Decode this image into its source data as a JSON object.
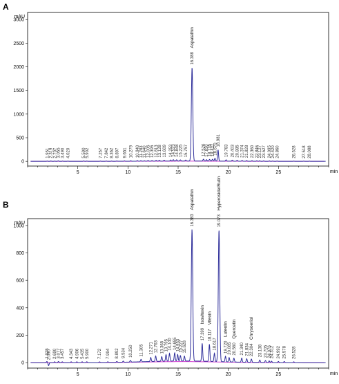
{
  "chart_data": [
    {
      "type": "line",
      "panel_label": "A",
      "ylabel": "mAU",
      "xlabel": "min",
      "xlim": [
        0,
        30
      ],
      "ylim": [
        -100,
        3150
      ],
      "x_ticks": [
        5,
        10,
        15,
        20,
        25
      ],
      "y_ticks": [
        0,
        500,
        1000,
        1500,
        2000,
        2500,
        3000
      ],
      "trace_color": "#2e2e9a",
      "baseline_color": "#d040d0",
      "peaks": [
        {
          "t": 1.951,
          "label": "1.951",
          "h": 6
        },
        {
          "t": 2.319,
          "label": "2.319",
          "h": 8
        },
        {
          "t": 2.707,
          "label": "2.707",
          "h": 6
        },
        {
          "t": 3.055,
          "label": "3.055",
          "h": 10
        },
        {
          "t": 3.49,
          "label": "3.490",
          "h": 6
        },
        {
          "t": 4.02,
          "label": "4.020",
          "h": 5
        },
        {
          "t": 5.59,
          "label": "5.590",
          "h": 8
        },
        {
          "t": 5.902,
          "label": "5.902",
          "h": 6
        },
        {
          "t": 7.257,
          "label": "7.257",
          "h": 5
        },
        {
          "t": 7.842,
          "label": "7.842",
          "h": 6
        },
        {
          "t": 8.362,
          "label": "8.362",
          "h": 5
        },
        {
          "t": 8.897,
          "label": "8.897",
          "h": 6
        },
        {
          "t": 9.651,
          "label": "9.651",
          "h": 8
        },
        {
          "t": 10.279,
          "label": "10.279",
          "h": 10
        },
        {
          "t": 10.94,
          "label": "10.940",
          "h": 12
        },
        {
          "t": 11.283,
          "label": "11.283",
          "h": 10
        },
        {
          "t": 11.64,
          "label": "11.640",
          "h": 8
        },
        {
          "t": 12.005,
          "label": "12.005",
          "h": 14
        },
        {
          "t": 12.395,
          "label": "12.395",
          "h": 12
        },
        {
          "t": 12.813,
          "label": "12.813",
          "h": 16
        },
        {
          "t": 13.128,
          "label": "13.128",
          "h": 18
        },
        {
          "t": 13.609,
          "label": "13.609",
          "h": 20
        },
        {
          "t": 14.253,
          "label": "14.253",
          "h": 24
        },
        {
          "t": 14.523,
          "label": "14.523",
          "h": 30
        },
        {
          "t": 14.848,
          "label": "14.848",
          "h": 28
        },
        {
          "t": 15.225,
          "label": "15.225",
          "h": 26
        },
        {
          "t": 15.757,
          "label": "15.757",
          "h": 22
        },
        {
          "t": 16.388,
          "label": "16.388",
          "h": 1980,
          "name": "Aspalathin"
        },
        {
          "t": 17.526,
          "label": "17.526",
          "h": 40
        },
        {
          "t": 17.83,
          "label": "17.830",
          "h": 30
        },
        {
          "t": 18.135,
          "label": "18.135",
          "h": 36
        },
        {
          "t": 18.427,
          "label": "18.427",
          "h": 40
        },
        {
          "t": 18.67,
          "label": "18.670",
          "h": 60
        },
        {
          "t": 18.981,
          "label": "18.981",
          "h": 240
        },
        {
          "t": 19.783,
          "label": "19.783",
          "h": 28
        },
        {
          "t": 20.403,
          "label": "20.403",
          "h": 22
        },
        {
          "t": 20.885,
          "label": "20.885",
          "h": 18
        },
        {
          "t": 21.374,
          "label": "21.374",
          "h": 16
        },
        {
          "t": 21.828,
          "label": "21.828",
          "h": 14
        },
        {
          "t": 22.36,
          "label": "22.360",
          "h": 12
        },
        {
          "t": 22.846,
          "label": "22.846",
          "h": 10
        },
        {
          "t": 23.127,
          "label": "23.127",
          "h": 10
        },
        {
          "t": 23.527,
          "label": "23.527",
          "h": 8
        },
        {
          "t": 24.095,
          "label": "24.095",
          "h": 8
        },
        {
          "t": 24.42,
          "label": "24.420",
          "h": 6
        },
        {
          "t": 24.86,
          "label": "24.860",
          "h": 6
        },
        {
          "t": 26.528,
          "label": "26.528",
          "h": 5
        },
        {
          "t": 27.518,
          "label": "27.518",
          "h": 5
        },
        {
          "t": 28.088,
          "label": "28.088",
          "h": 5
        }
      ]
    },
    {
      "type": "line",
      "panel_label": "B",
      "ylabel": "mAU",
      "xlabel": "min",
      "xlim": [
        0,
        30
      ],
      "ylim": [
        -40,
        1050
      ],
      "x_ticks": [
        5,
        10,
        15,
        20,
        25
      ],
      "y_ticks": [
        0,
        200,
        400,
        600,
        800,
        1000
      ],
      "trace_color": "#2e2e9a",
      "baseline_color": "#d040d0",
      "peaks": [
        {
          "t": 1.925,
          "label": "1.925",
          "h": 8
        },
        {
          "t": 2.09,
          "label": "2.090",
          "h": -22
        },
        {
          "t": 2.69,
          "label": "2.690",
          "h": 6
        },
        {
          "t": 3.077,
          "label": "3.077",
          "h": 8
        },
        {
          "t": 3.457,
          "label": "3.457",
          "h": 6
        },
        {
          "t": 4.343,
          "label": "4.343",
          "h": 6
        },
        {
          "t": 4.906,
          "label": "4.906",
          "h": 6
        },
        {
          "t": 5.435,
          "label": "5.435",
          "h": 6
        },
        {
          "t": 5.9,
          "label": "5.900",
          "h": 6
        },
        {
          "t": 7.172,
          "label": "7.172",
          "h": 5
        },
        {
          "t": 7.994,
          "label": "7.994",
          "h": 5
        },
        {
          "t": 8.892,
          "label": "8.892",
          "h": 6
        },
        {
          "t": 9.534,
          "label": "9.534",
          "h": 8
        },
        {
          "t": 10.25,
          "label": "10.250",
          "h": 12
        },
        {
          "t": 11.305,
          "label": "11.305",
          "h": 18
        },
        {
          "t": 12.271,
          "label": "12.271",
          "h": 30
        },
        {
          "t": 12.763,
          "label": "12.763",
          "h": 40
        },
        {
          "t": 13.368,
          "label": "13.368",
          "h": 34
        },
        {
          "t": 13.795,
          "label": "13.795",
          "h": 48
        },
        {
          "t": 14.14,
          "label": "14.140",
          "h": 56
        },
        {
          "t": 14.655,
          "label": "14.655",
          "h": 60
        },
        {
          "t": 14.953,
          "label": "14.953",
          "h": 48
        },
        {
          "t": 15.227,
          "label": "15.227",
          "h": 40
        },
        {
          "t": 15.628,
          "label": "15.628",
          "h": 36
        },
        {
          "t": 16.383,
          "label": "16.383",
          "h": 960,
          "name": "Aspalathin"
        },
        {
          "t": 17.399,
          "label": "17.399",
          "h": 130,
          "name": "Isovitexin"
        },
        {
          "t": 18.117,
          "label": "18.117",
          "h": 125,
          "name": "Vitexin"
        },
        {
          "t": 18.617,
          "label": "18.617",
          "h": 60
        },
        {
          "t": 19.073,
          "label": "19.073",
          "h": 960,
          "name": "Hyperoside/Rutin"
        },
        {
          "t": 19.72,
          "label": "19.720",
          "h": 40,
          "name": "Luteolin"
        },
        {
          "t": 20.085,
          "label": "20.085",
          "h": 32
        },
        {
          "t": 20.56,
          "label": "20.560",
          "h": 28,
          "name": "Quercetin"
        },
        {
          "t": 21.34,
          "label": "21.340",
          "h": 30
        },
        {
          "t": 21.834,
          "label": "21.834",
          "h": 26
        },
        {
          "t": 22.304,
          "label": "22.304",
          "h": 24,
          "name": "Chrysoeriol"
        },
        {
          "t": 23.138,
          "label": "23.138",
          "h": 18
        },
        {
          "t": 23.705,
          "label": "23.705",
          "h": 14
        },
        {
          "t": 24.076,
          "label": "24.076",
          "h": 12
        },
        {
          "t": 24.312,
          "label": "24.312",
          "h": 10
        },
        {
          "t": 24.992,
          "label": "24.992",
          "h": 8
        },
        {
          "t": 25.578,
          "label": "25.578",
          "h": 8
        },
        {
          "t": 26.528,
          "label": "26.528",
          "h": 6
        }
      ]
    }
  ]
}
